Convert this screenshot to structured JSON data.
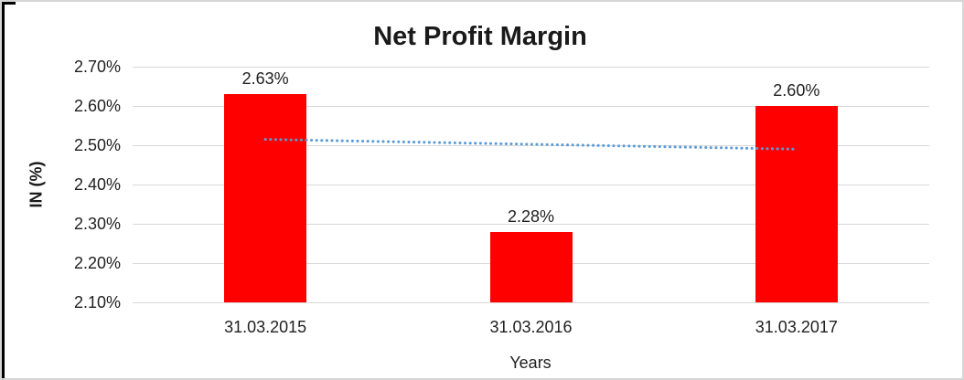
{
  "chart_data": {
    "type": "bar",
    "title": "Net Profit Margin",
    "xlabel": "Years",
    "ylabel": "IN (%)",
    "categories": [
      "31.03.2015",
      "31.03.2016",
      "31.03.2017"
    ],
    "values": [
      2.63,
      2.28,
      2.6
    ],
    "data_labels": [
      "2.63%",
      "2.28%",
      "2.60%"
    ],
    "y_ticks": [
      "2.70%",
      "2.60%",
      "2.50%",
      "2.40%",
      "2.30%",
      "2.20%",
      "2.10%"
    ],
    "ylim": [
      2.1,
      2.7
    ],
    "grid": true,
    "legend": "none",
    "bar_color": "#ff0000",
    "trendline": {
      "type": "linear",
      "style": "dotted",
      "color": "#5b9bd5",
      "start_value": 2.515,
      "end_value": 2.49
    }
  }
}
